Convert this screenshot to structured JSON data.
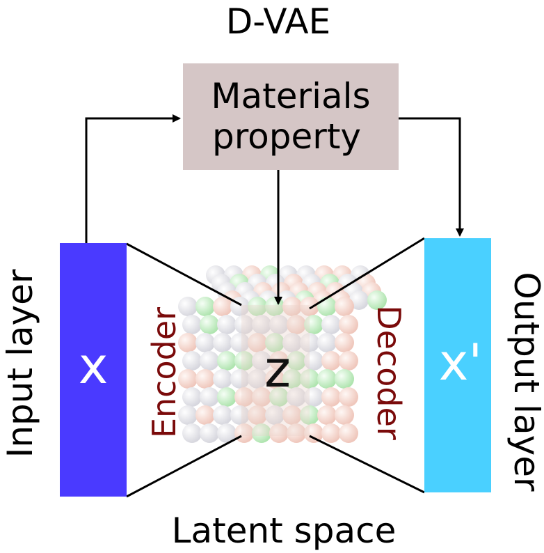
{
  "title": "D-VAE",
  "property_box": {
    "line1": "Materials",
    "line2": "property",
    "fill": "#d5c6c6"
  },
  "input": {
    "symbol": "x",
    "side_label": "Input layer",
    "fill": "#4a3aff"
  },
  "output": {
    "symbol": "x'",
    "side_label": "Output layer",
    "fill": "#4ad0ff"
  },
  "encoder_label": "Encoder",
  "decoder_label": "Decoder",
  "latent": {
    "symbol": "z",
    "caption": "Latent space"
  },
  "colors": {
    "accent_text": "#7a0a0a",
    "sphere_red": "#e8a090",
    "sphere_green": "#7fd37f",
    "sphere_grey": "#c8c8d0"
  }
}
